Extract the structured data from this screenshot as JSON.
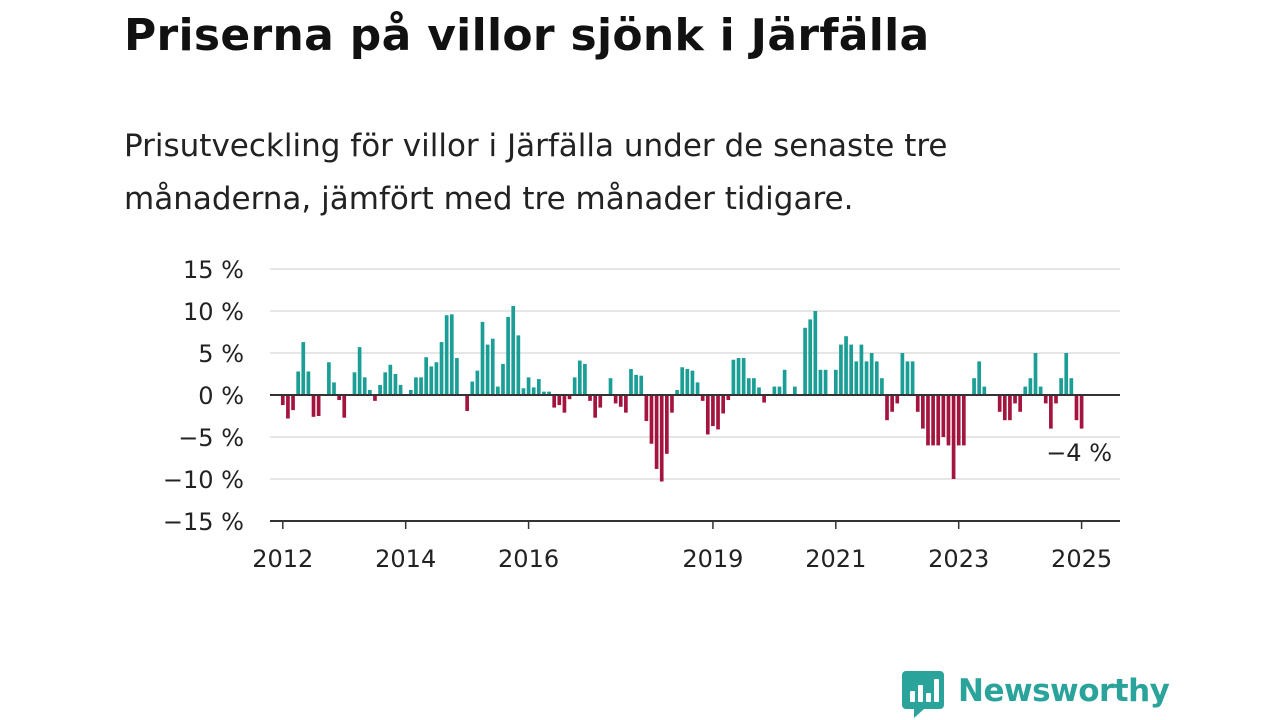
{
  "header": {
    "title": "Priserna på villor sjönk i Järfälla",
    "subtitle": "Prisutveckling för villor i Järfälla under de senaste tre månaderna, jämfört med tre månader tidigare."
  },
  "brand": {
    "name": "Newsworthy",
    "icon": "newsworthy-logo-icon",
    "color": "#2aa39b"
  },
  "chart_data": {
    "type": "bar",
    "title": "Priserna på villor sjönk i Järfälla",
    "subtitle": "Prisutveckling för villor i Järfälla under de senaste tre månaderna, jämfört med tre månader tidigare.",
    "xlabel": "",
    "ylabel": "",
    "ylim": [
      -15,
      15
    ],
    "yticks": [
      15,
      10,
      5,
      0,
      -5,
      -10,
      -15
    ],
    "ytick_labels": [
      "15 %",
      "10 %",
      "5 %",
      "0 %",
      "−5 %",
      "−10 %",
      "−15 %"
    ],
    "xticks": [
      {
        "label": "2012",
        "x": "2012-01"
      },
      {
        "label": "2014",
        "x": "2014-01"
      },
      {
        "label": "2016",
        "x": "2016-01"
      },
      {
        "label": "2019",
        "x": "2019-01"
      },
      {
        "label": "2021",
        "x": "2021-01"
      },
      {
        "label": "2023",
        "x": "2023-01"
      },
      {
        "label": "2025",
        "x": "2025-01"
      }
    ],
    "x_start": "2011-11",
    "x_end": "2025-08",
    "grid": true,
    "colors": {
      "positive": "#1a9e96",
      "negative": "#a3153f",
      "grid": "#dddddd",
      "axis": "#333333"
    },
    "annotation": {
      "text": "−4 %",
      "x": "2025-01"
    },
    "series": [
      {
        "values": [
          {
            "x": "2012-01",
            "y": -1.2
          },
          {
            "x": "2012-02",
            "y": -2.8
          },
          {
            "x": "2012-03",
            "y": -1.8
          },
          {
            "x": "2012-04",
            "y": 2.8
          },
          {
            "x": "2012-05",
            "y": 6.3
          },
          {
            "x": "2012-06",
            "y": 2.8
          },
          {
            "x": "2012-07",
            "y": -2.6
          },
          {
            "x": "2012-08",
            "y": -2.5
          },
          {
            "x": "2012-10",
            "y": 3.9
          },
          {
            "x": "2012-11",
            "y": 1.5
          },
          {
            "x": "2012-12",
            "y": -0.6
          },
          {
            "x": "2013-01",
            "y": -2.7
          },
          {
            "x": "2013-03",
            "y": 2.7
          },
          {
            "x": "2013-04",
            "y": 5.7
          },
          {
            "x": "2013-05",
            "y": 2.1
          },
          {
            "x": "2013-06",
            "y": 0.6
          },
          {
            "x": "2013-07",
            "y": -0.7
          },
          {
            "x": "2013-08",
            "y": 1.2
          },
          {
            "x": "2013-09",
            "y": 2.7
          },
          {
            "x": "2013-10",
            "y": 3.6
          },
          {
            "x": "2013-11",
            "y": 2.5
          },
          {
            "x": "2013-12",
            "y": 1.2
          },
          {
            "x": "2014-02",
            "y": 0.6
          },
          {
            "x": "2014-03",
            "y": 2.1
          },
          {
            "x": "2014-04",
            "y": 2.1
          },
          {
            "x": "2014-05",
            "y": 4.5
          },
          {
            "x": "2014-06",
            "y": 3.4
          },
          {
            "x": "2014-07",
            "y": 3.9
          },
          {
            "x": "2014-08",
            "y": 6.3
          },
          {
            "x": "2014-09",
            "y": 9.5
          },
          {
            "x": "2014-10",
            "y": 9.6
          },
          {
            "x": "2014-11",
            "y": 4.4
          },
          {
            "x": "2015-01",
            "y": -1.9
          },
          {
            "x": "2015-02",
            "y": 1.6
          },
          {
            "x": "2015-03",
            "y": 2.9
          },
          {
            "x": "2015-04",
            "y": 8.7
          },
          {
            "x": "2015-05",
            "y": 6.0
          },
          {
            "x": "2015-06",
            "y": 6.7
          },
          {
            "x": "2015-07",
            "y": 1.0
          },
          {
            "x": "2015-08",
            "y": 3.7
          },
          {
            "x": "2015-09",
            "y": 9.3
          },
          {
            "x": "2015-10",
            "y": 10.6
          },
          {
            "x": "2015-11",
            "y": 7.1
          },
          {
            "x": "2015-12",
            "y": 0.8
          },
          {
            "x": "2016-01",
            "y": 2.1
          },
          {
            "x": "2016-02",
            "y": 0.9
          },
          {
            "x": "2016-03",
            "y": 1.9
          },
          {
            "x": "2016-04",
            "y": 0.4
          },
          {
            "x": "2016-05",
            "y": 0.4
          },
          {
            "x": "2016-06",
            "y": -1.5
          },
          {
            "x": "2016-07",
            "y": -1.2
          },
          {
            "x": "2016-08",
            "y": -2.1
          },
          {
            "x": "2016-09",
            "y": -0.5
          },
          {
            "x": "2016-10",
            "y": 2.1
          },
          {
            "x": "2016-11",
            "y": 4.1
          },
          {
            "x": "2016-12",
            "y": 3.7
          },
          {
            "x": "2017-01",
            "y": -0.7
          },
          {
            "x": "2017-02",
            "y": -2.7
          },
          {
            "x": "2017-03",
            "y": -1.5
          },
          {
            "x": "2017-05",
            "y": 2.0
          },
          {
            "x": "2017-06",
            "y": -1.0
          },
          {
            "x": "2017-07",
            "y": -1.4
          },
          {
            "x": "2017-08",
            "y": -2.1
          },
          {
            "x": "2017-09",
            "y": 3.1
          },
          {
            "x": "2017-10",
            "y": 2.4
          },
          {
            "x": "2017-11",
            "y": 2.3
          },
          {
            "x": "2017-12",
            "y": -3.1
          },
          {
            "x": "2018-01",
            "y": -5.8
          },
          {
            "x": "2018-02",
            "y": -8.8
          },
          {
            "x": "2018-03",
            "y": -10.3
          },
          {
            "x": "2018-04",
            "y": -7.0
          },
          {
            "x": "2018-05",
            "y": -2.1
          },
          {
            "x": "2018-06",
            "y": 0.6
          },
          {
            "x": "2018-07",
            "y": 3.3
          },
          {
            "x": "2018-08",
            "y": 3.1
          },
          {
            "x": "2018-09",
            "y": 2.9
          },
          {
            "x": "2018-10",
            "y": 1.5
          },
          {
            "x": "2018-11",
            "y": -0.7
          },
          {
            "x": "2018-12",
            "y": -4.7
          },
          {
            "x": "2019-01",
            "y": -3.7
          },
          {
            "x": "2019-02",
            "y": -4.1
          },
          {
            "x": "2019-03",
            "y": -2.2
          },
          {
            "x": "2019-04",
            "y": -0.6
          },
          {
            "x": "2019-05",
            "y": 4.2
          },
          {
            "x": "2019-06",
            "y": 4.4
          },
          {
            "x": "2019-07",
            "y": 4.4
          },
          {
            "x": "2019-08",
            "y": 2.0
          },
          {
            "x": "2019-09",
            "y": 2.0
          },
          {
            "x": "2019-10",
            "y": 0.9
          },
          {
            "x": "2019-11",
            "y": -0.9
          },
          {
            "x": "2020-01",
            "y": 1.0
          },
          {
            "x": "2020-02",
            "y": 1.0
          },
          {
            "x": "2020-03",
            "y": 3.0
          },
          {
            "x": "2020-05",
            "y": 1.0
          },
          {
            "x": "2020-07",
            "y": 8.0
          },
          {
            "x": "2020-08",
            "y": 9.0
          },
          {
            "x": "2020-09",
            "y": 10.0
          },
          {
            "x": "2020-10",
            "y": 3.0
          },
          {
            "x": "2020-11",
            "y": 3.0
          },
          {
            "x": "2021-01",
            "y": 3.0
          },
          {
            "x": "2021-02",
            "y": 6.0
          },
          {
            "x": "2021-03",
            "y": 7.0
          },
          {
            "x": "2021-04",
            "y": 6.0
          },
          {
            "x": "2021-05",
            "y": 4.0
          },
          {
            "x": "2021-06",
            "y": 6.0
          },
          {
            "x": "2021-07",
            "y": 4.0
          },
          {
            "x": "2021-08",
            "y": 5.0
          },
          {
            "x": "2021-09",
            "y": 4.0
          },
          {
            "x": "2021-10",
            "y": 2.0
          },
          {
            "x": "2021-11",
            "y": -3.0
          },
          {
            "x": "2021-12",
            "y": -2.0
          },
          {
            "x": "2022-01",
            "y": -1.0
          },
          {
            "x": "2022-02",
            "y": 5.0
          },
          {
            "x": "2022-03",
            "y": 4.0
          },
          {
            "x": "2022-04",
            "y": 4.0
          },
          {
            "x": "2022-05",
            "y": -2.0
          },
          {
            "x": "2022-06",
            "y": -4.0
          },
          {
            "x": "2022-07",
            "y": -6.0
          },
          {
            "x": "2022-08",
            "y": -6.0
          },
          {
            "x": "2022-09",
            "y": -6.0
          },
          {
            "x": "2022-10",
            "y": -5.0
          },
          {
            "x": "2022-11",
            "y": -6.0
          },
          {
            "x": "2022-12",
            "y": -10.0
          },
          {
            "x": "2023-01",
            "y": -6.0
          },
          {
            "x": "2023-02",
            "y": -6.0
          },
          {
            "x": "2023-04",
            "y": 2.0
          },
          {
            "x": "2023-05",
            "y": 4.0
          },
          {
            "x": "2023-06",
            "y": 1.0
          },
          {
            "x": "2023-09",
            "y": -2.0
          },
          {
            "x": "2023-10",
            "y": -3.0
          },
          {
            "x": "2023-11",
            "y": -3.0
          },
          {
            "x": "2023-12",
            "y": -1.0
          },
          {
            "x": "2024-01",
            "y": -2.0
          },
          {
            "x": "2024-02",
            "y": 1.0
          },
          {
            "x": "2024-03",
            "y": 2.0
          },
          {
            "x": "2024-04",
            "y": 5.0
          },
          {
            "x": "2024-05",
            "y": 1.0
          },
          {
            "x": "2024-06",
            "y": -1.0
          },
          {
            "x": "2024-07",
            "y": -4.0
          },
          {
            "x": "2024-08",
            "y": -1.0
          },
          {
            "x": "2024-09",
            "y": 2.0
          },
          {
            "x": "2024-10",
            "y": 5.0
          },
          {
            "x": "2024-11",
            "y": 2.0
          },
          {
            "x": "2024-12",
            "y": -3.0
          },
          {
            "x": "2025-01",
            "y": -4.0
          }
        ]
      }
    ]
  }
}
